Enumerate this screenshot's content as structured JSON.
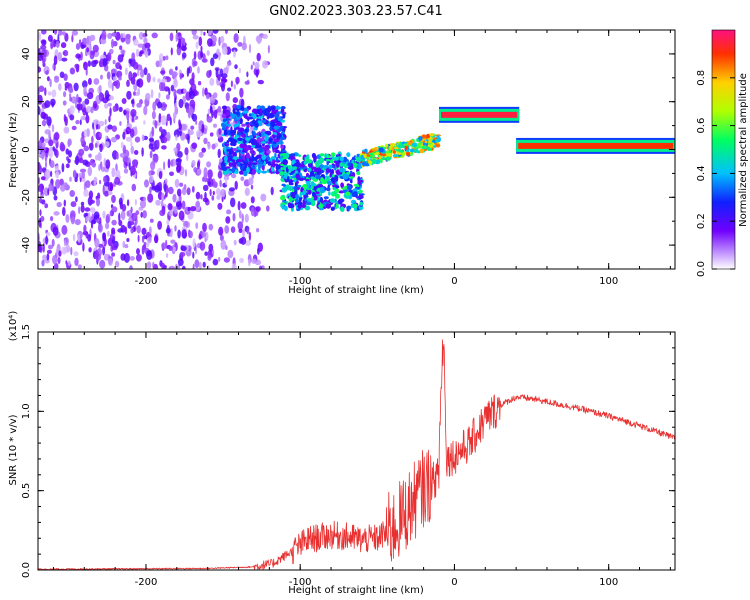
{
  "title": "GN02.2023.303.23.57.C41",
  "chart_data": [
    {
      "type": "heatmap",
      "name": "spectrogram",
      "xlabel": "Height of straight line (km)",
      "ylabel": "Frequency (Hz)",
      "xlim": [
        -270,
        143
      ],
      "ylim": [
        -50,
        50
      ],
      "xticks": [
        -200,
        -100,
        0,
        100
      ],
      "yticks": [
        -40,
        -20,
        0,
        20,
        40
      ],
      "colorbar": {
        "label": "Normalized spectral amplitude",
        "range": [
          0,
          1
        ],
        "ticks": [
          "0.0",
          "0.2",
          "0.4",
          "0.6",
          "0.8"
        ],
        "colormap": [
          "#ffffff",
          "#c8a0ff",
          "#7000ff",
          "#1020ff",
          "#00c0ff",
          "#00ff60",
          "#b0ff00",
          "#ffd000",
          "#ff3000",
          "#ff1080"
        ]
      },
      "regions": [
        {
          "x": [
            -270,
            -130
          ],
          "freq": [
            -50,
            50
          ],
          "amplitude": 0.15,
          "pattern": "scattered-noise"
        },
        {
          "x": [
            -150,
            -110
          ],
          "freq": [
            -10,
            18
          ],
          "amplitude": 0.35,
          "pattern": "cluster"
        },
        {
          "x": [
            -112,
            -60
          ],
          "freq": [
            -25,
            -2
          ],
          "amplitude": 0.45,
          "pattern": "cluster"
        },
        {
          "x": [
            -60,
            -10
          ],
          "freq": [
            -7,
            4
          ],
          "amplitude": 0.75,
          "pattern": "rising-line"
        },
        {
          "x": [
            -10,
            42
          ],
          "freq": [
            12,
            17
          ],
          "amplitude": 0.95,
          "pattern": "flat-line"
        },
        {
          "x": [
            40,
            143
          ],
          "freq": [
            -1,
            4
          ],
          "amplitude": 0.9,
          "pattern": "flat-line"
        }
      ]
    },
    {
      "type": "line",
      "name": "snr",
      "xlabel": "Height of straight line (km)",
      "ylabel": "SNR (10 * v/v)",
      "y_multiplier": "(x10⁴)",
      "xlim": [
        -270,
        143
      ],
      "ylim": [
        0.0,
        1.5
      ],
      "xticks": [
        -200,
        -100,
        0,
        100
      ],
      "yticks": [
        "0.0",
        "0.5",
        "1.0",
        "1.5"
      ],
      "color": "#e83030",
      "x": [
        -270,
        -200,
        -160,
        -130,
        -118,
        -105,
        -95,
        -80,
        -70,
        -60,
        -50,
        -40,
        -30,
        -20,
        -15,
        -10,
        -7,
        -5,
        0,
        10,
        20,
        30,
        40,
        50,
        60,
        80,
        100,
        120,
        143
      ],
      "y": [
        0.005,
        0.008,
        0.01,
        0.02,
        0.04,
        0.12,
        0.19,
        0.22,
        0.21,
        0.19,
        0.2,
        0.26,
        0.38,
        0.52,
        0.55,
        0.6,
        1.35,
        0.7,
        0.72,
        0.8,
        0.95,
        1.04,
        1.09,
        1.08,
        1.06,
        1.02,
        0.97,
        0.91,
        0.83
      ]
    }
  ]
}
